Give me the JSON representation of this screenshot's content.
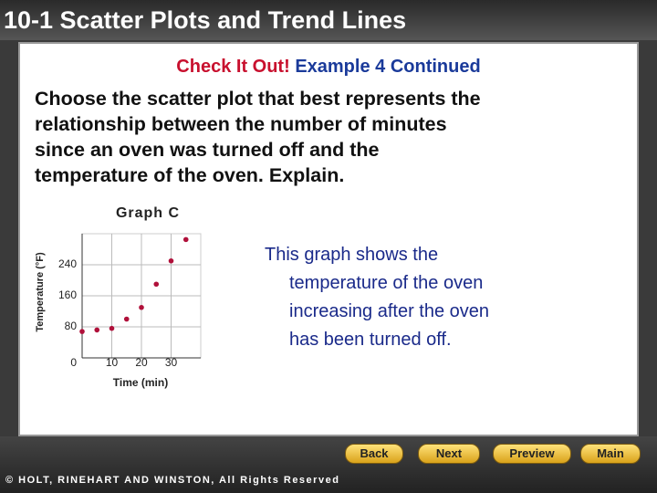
{
  "header": {
    "title": "10-1 Scatter Plots and Trend Lines"
  },
  "subtitle": {
    "lead": "Check It Out!",
    "rest": "Example 4 Continued"
  },
  "question": [
    "Choose the scatter plot that best represents the",
    "relationship between the number of minutes",
    "since an oven was turned off and the",
    "temperature of the oven. Explain."
  ],
  "graph": {
    "type": "scatter",
    "title": "Graph C",
    "x_label": "Time (min)",
    "y_label": "Temperature (°F)",
    "x": [
      0,
      5,
      10,
      15,
      20,
      25,
      30,
      35
    ],
    "values": [
      68,
      72,
      76,
      100,
      130,
      190,
      250,
      305
    ],
    "color": "#b0103a",
    "xlim": [
      0,
      40
    ],
    "ylim": [
      0,
      320
    ],
    "xticks": [
      0,
      10,
      20,
      30
    ],
    "yticks": [
      80,
      160,
      240
    ],
    "grid": true
  },
  "explanation": [
    "This graph shows the",
    "temperature of the oven",
    "increasing after the oven",
    "has been turned off."
  ],
  "nav": [
    "Back",
    "Next",
    "Preview",
    "Main"
  ],
  "footer": "© HOLT, RINEHART AND WINSTON, All Rights Reserved"
}
